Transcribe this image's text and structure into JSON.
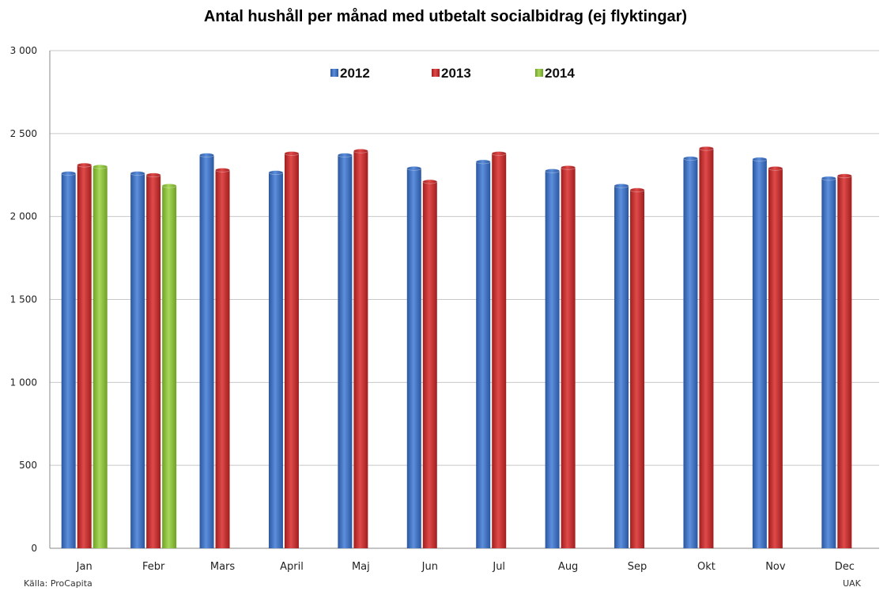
{
  "chart_data": {
    "type": "bar",
    "title": "Antal hushåll per månad med utbetalt socialbidrag (ej flyktingar)",
    "categories": [
      "Jan",
      "Febr",
      "Mars",
      "April",
      "Maj",
      "Jun",
      "Jul",
      "Aug",
      "Sep",
      "Okt",
      "Nov",
      "Dec"
    ],
    "series": [
      {
        "name": "2012",
        "color": "#3a6fc4",
        "values": [
          2260,
          2260,
          2370,
          2265,
          2370,
          2290,
          2330,
          2275,
          2185,
          2350,
          2345,
          2230
        ]
      },
      {
        "name": "2013",
        "color": "#c62f2f",
        "values": [
          2310,
          2250,
          2280,
          2380,
          2395,
          2210,
          2380,
          2295,
          2160,
          2410,
          2290,
          2245
        ]
      },
      {
        "name": "2014",
        "color": "#8cc43a",
        "values": [
          2300,
          2185,
          null,
          null,
          null,
          null,
          null,
          null,
          null,
          null,
          null,
          null
        ]
      }
    ],
    "ylim": [
      0,
      3000
    ],
    "yticks": [
      0,
      500,
      1000,
      1500,
      2000,
      2500,
      3000
    ],
    "ytick_labels": [
      "0",
      "500",
      "1 000",
      "1 500",
      "2 000",
      "2 500",
      "3 000"
    ],
    "grid": true,
    "legend_position": "top-center"
  },
  "footer": {
    "source": "Källa: ProCapita",
    "author": "UAK"
  }
}
